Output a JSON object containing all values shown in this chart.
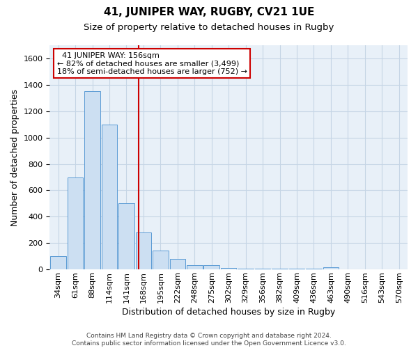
{
  "title": "41, JUNIPER WAY, RUGBY, CV21 1UE",
  "subtitle": "Size of property relative to detached houses in Rugby",
  "xlabel": "Distribution of detached houses by size in Rugby",
  "ylabel": "Number of detached properties",
  "footer_line1": "Contains HM Land Registry data © Crown copyright and database right 2024.",
  "footer_line2": "Contains public sector information licensed under the Open Government Licence v3.0.",
  "categories": [
    "34sqm",
    "61sqm",
    "88sqm",
    "114sqm",
    "141sqm",
    "168sqm",
    "195sqm",
    "222sqm",
    "248sqm",
    "275sqm",
    "302sqm",
    "329sqm",
    "356sqm",
    "382sqm",
    "409sqm",
    "436sqm",
    "463sqm",
    "490sqm",
    "516sqm",
    "543sqm",
    "570sqm"
  ],
  "values": [
    100,
    700,
    1350,
    1100,
    500,
    280,
    145,
    80,
    35,
    35,
    10,
    5,
    5,
    5,
    5,
    5,
    15,
    0,
    0,
    0,
    0
  ],
  "bar_color": "#ccdff2",
  "bar_edge_color": "#5b9bd5",
  "red_line_x": 4.72,
  "red_line_color": "#cc0000",
  "annotation_text": "  41 JUNIPER WAY: 156sqm\n← 82% of detached houses are smaller (3,499)\n18% of semi-detached houses are larger (752) →",
  "annotation_box_color": "#ffffff",
  "annotation_box_edge": "#cc0000",
  "ylim": [
    0,
    1700
  ],
  "background_color": "#ffffff",
  "plot_bg_color": "#e8f0f8",
  "grid_color": "#c5d5e5",
  "title_fontsize": 11,
  "subtitle_fontsize": 9.5,
  "axis_label_fontsize": 9,
  "tick_fontsize": 8,
  "annotation_fontsize": 8
}
